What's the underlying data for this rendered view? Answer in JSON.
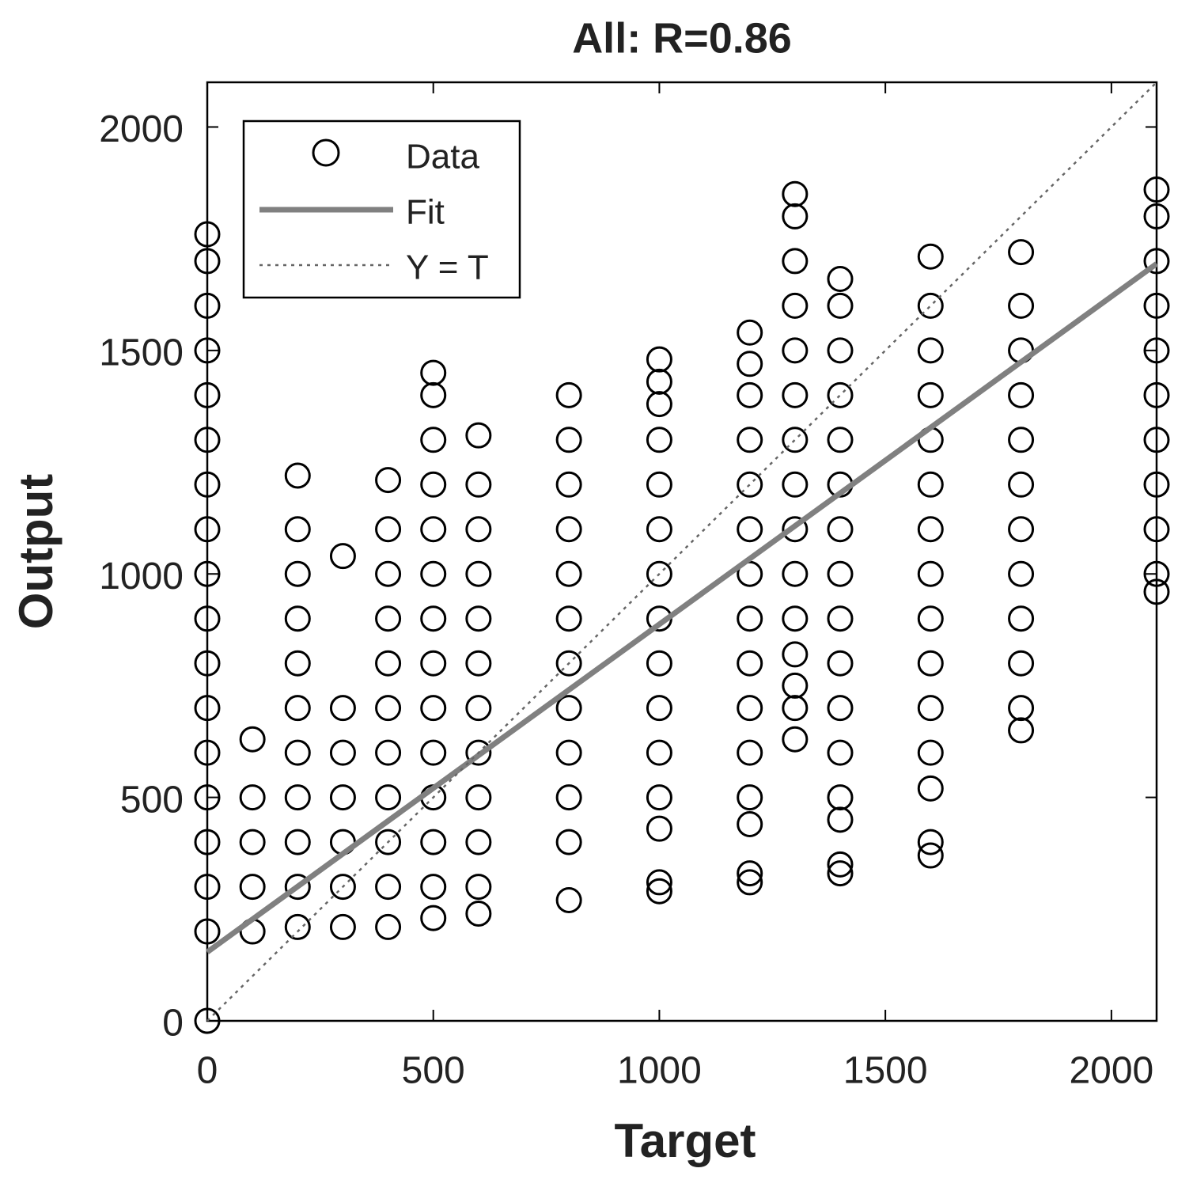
{
  "chart_data": {
    "type": "scatter",
    "title": "All: R=0.86",
    "x_label": "Target",
    "y_label": "Output",
    "xlim": [
      0,
      2100
    ],
    "ylim": [
      0,
      2100
    ],
    "xticks": [
      0,
      500,
      1000,
      1500,
      2000
    ],
    "yticks": [
      0,
      500,
      1000,
      1500,
      2000
    ],
    "grid": false,
    "legend": "upper left",
    "series": [
      {
        "name": "Data",
        "color": "#000000",
        "marker": "circle",
        "line_style": "none",
        "x": [
          0,
          0,
          0,
          0,
          0,
          0,
          0,
          0,
          0,
          0,
          0,
          0,
          0,
          0,
          0,
          0,
          0,
          0,
          100,
          100,
          100,
          100,
          100,
          200,
          200,
          200,
          200,
          200,
          200,
          200,
          200,
          200,
          200,
          200,
          300,
          300,
          300,
          300,
          300,
          300,
          300,
          400,
          400,
          400,
          400,
          400,
          400,
          400,
          400,
          400,
          400,
          400,
          500,
          500,
          500,
          500,
          500,
          500,
          500,
          500,
          500,
          500,
          500,
          500,
          500,
          500,
          600,
          600,
          600,
          600,
          600,
          600,
          600,
          600,
          600,
          600,
          600,
          600,
          800,
          800,
          800,
          800,
          800,
          800,
          800,
          800,
          800,
          800,
          800,
          800,
          1000,
          1000,
          1000,
          1000,
          1000,
          1000,
          1000,
          1000,
          1000,
          1000,
          1000,
          1000,
          1000,
          1000,
          1000,
          1200,
          1200,
          1200,
          1200,
          1200,
          1200,
          1200,
          1200,
          1200,
          1200,
          1200,
          1200,
          1200,
          1200,
          1200,
          1300,
          1300,
          1300,
          1300,
          1300,
          1300,
          1300,
          1300,
          1300,
          1300,
          1300,
          1300,
          1300,
          1300,
          1300,
          1400,
          1400,
          1400,
          1400,
          1400,
          1400,
          1400,
          1400,
          1400,
          1400,
          1400,
          1400,
          1400,
          1400,
          1400,
          1400,
          1600,
          1600,
          1600,
          1600,
          1600,
          1600,
          1600,
          1600,
          1600,
          1600,
          1600,
          1600,
          1600,
          1600,
          1600,
          1800,
          1800,
          1800,
          1800,
          1800,
          1800,
          1800,
          1800,
          1800,
          1800,
          1800,
          1800,
          2100,
          2100,
          2100,
          2100,
          2100,
          2100,
          2100,
          2100,
          2100,
          2100,
          2100
        ],
        "values": [
          0,
          200,
          300,
          400,
          500,
          600,
          700,
          800,
          900,
          1000,
          1100,
          1200,
          1300,
          1400,
          1500,
          1600,
          1700,
          1760,
          200,
          300,
          400,
          500,
          630,
          210,
          300,
          400,
          500,
          600,
          700,
          800,
          900,
          1000,
          1100,
          1220,
          210,
          300,
          400,
          500,
          600,
          700,
          1040,
          210,
          300,
          400,
          500,
          600,
          700,
          800,
          900,
          1000,
          1100,
          1210,
          230,
          300,
          400,
          500,
          600,
          700,
          800,
          900,
          1000,
          1100,
          1200,
          1300,
          1400,
          1450,
          240,
          300,
          400,
          500,
          600,
          700,
          800,
          900,
          1000,
          1100,
          1200,
          1310,
          270,
          400,
          500,
          600,
          700,
          800,
          900,
          1000,
          1100,
          1200,
          1300,
          1400,
          290,
          310,
          430,
          500,
          600,
          700,
          800,
          900,
          1000,
          1100,
          1200,
          1300,
          1380,
          1430,
          1480,
          310,
          330,
          440,
          500,
          600,
          700,
          800,
          900,
          1000,
          1100,
          1200,
          1300,
          1400,
          1470,
          1540,
          630,
          700,
          750,
          820,
          900,
          1000,
          1100,
          1200,
          1300,
          1400,
          1500,
          1600,
          1700,
          1800,
          1850,
          330,
          350,
          450,
          500,
          600,
          700,
          800,
          900,
          1000,
          1100,
          1200,
          1300,
          1400,
          1500,
          1600,
          1660,
          370,
          400,
          520,
          600,
          700,
          800,
          900,
          1000,
          1100,
          1200,
          1300,
          1400,
          1500,
          1600,
          1710,
          650,
          700,
          800,
          900,
          1000,
          1100,
          1200,
          1300,
          1400,
          1500,
          1600,
          1720,
          960,
          1000,
          1100,
          1200,
          1300,
          1400,
          1500,
          1600,
          1700,
          1800,
          1860
        ]
      },
      {
        "name": "Fit",
        "color": "#808080",
        "marker": "none",
        "line_style": "solid",
        "x": [
          0,
          2100
        ],
        "values": [
          154,
          1694
        ]
      },
      {
        "name": "Y = T",
        "color": "#666666",
        "marker": "none",
        "line_style": "dotted",
        "x": [
          0,
          2100
        ],
        "values": [
          0,
          2100
        ]
      }
    ]
  }
}
